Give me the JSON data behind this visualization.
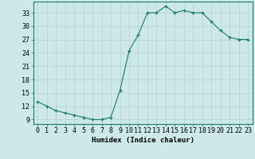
{
  "x": [
    0,
    1,
    2,
    3,
    4,
    5,
    6,
    7,
    8,
    9,
    10,
    11,
    12,
    13,
    14,
    15,
    16,
    17,
    18,
    19,
    20,
    21,
    22,
    23
  ],
  "y": [
    13,
    12,
    11,
    10.5,
    10,
    9.5,
    9,
    9,
    9.5,
    15.5,
    24.5,
    28,
    33,
    33,
    34.5,
    33,
    33.5,
    33,
    33,
    31,
    29,
    27.5,
    27,
    27
  ],
  "line_color": "#1a7a6e",
  "marker_color": "#1a7a6e",
  "bg_color": "#cce8e8",
  "grid_color": "#b8d4d4",
  "xlabel": "Humidex (Indice chaleur)",
  "xlim": [
    -0.5,
    23.5
  ],
  "ylim": [
    8,
    35.5
  ],
  "yticks": [
    9,
    12,
    15,
    18,
    21,
    24,
    27,
    30,
    33
  ],
  "xticks": [
    0,
    1,
    2,
    3,
    4,
    5,
    6,
    7,
    8,
    9,
    10,
    11,
    12,
    13,
    14,
    15,
    16,
    17,
    18,
    19,
    20,
    21,
    22,
    23
  ],
  "xlabel_fontsize": 6.5,
  "tick_fontsize": 6.0
}
